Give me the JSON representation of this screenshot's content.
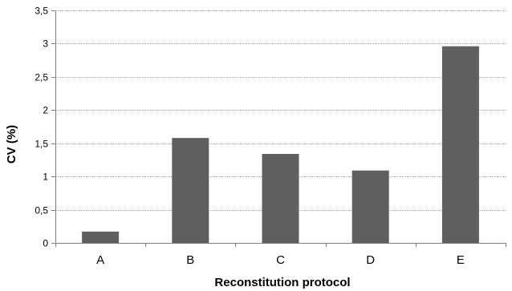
{
  "chart_data": {
    "type": "bar",
    "categories": [
      "A",
      "B",
      "C",
      "D",
      "E"
    ],
    "values": [
      0.17,
      1.58,
      1.34,
      1.09,
      2.96
    ],
    "xlabel": "Reconstitution protocol",
    "ylabel": "CV (%)",
    "ylim": [
      0,
      3.5
    ],
    "yticks": [
      0,
      0.5,
      1,
      1.5,
      2,
      2.5,
      3,
      3.5
    ],
    "ytick_labels": [
      "0",
      "0,5",
      "1",
      "1,5",
      "2",
      "2,5",
      "3",
      "3,5"
    ],
    "grid": true,
    "legend": "none",
    "colors": {
      "bar": "#5f5f5f",
      "grid": "#a6a6a6",
      "axis": "#7f7f7f"
    }
  }
}
